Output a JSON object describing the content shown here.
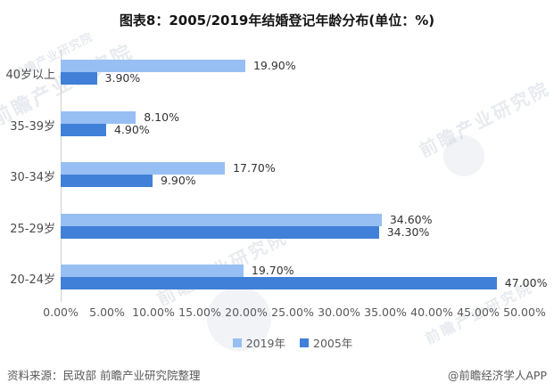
{
  "header": {
    "title": "图表8：2005/2019年结婚登记年龄分布(单位：%)"
  },
  "chart_data": {
    "type": "bar",
    "orientation": "horizontal",
    "title": "图表8：2005/2019年结婚登记年龄分布(单位：%)",
    "unit": "%",
    "categories": [
      "40岁以上",
      "35-39岁",
      "30-34岁",
      "25-29岁",
      "20-24岁"
    ],
    "series": [
      {
        "name": "2019年",
        "color": "#97BFF3",
        "values": [
          19.9,
          8.1,
          17.7,
          34.6,
          19.7
        ],
        "labels": [
          "19.90%",
          "8.10%",
          "17.70%",
          "34.60%",
          "19.70%"
        ]
      },
      {
        "name": "2005年",
        "color": "#4080D8",
        "values": [
          3.9,
          4.9,
          9.9,
          34.3,
          47.0
        ],
        "labels": [
          "3.90%",
          "4.90%",
          "9.90%",
          "34.30%",
          "47.00%"
        ]
      }
    ],
    "xlim": [
      0,
      50
    ],
    "xticks": [
      "0.00%",
      "5.00%",
      "10.00%",
      "15.00%",
      "20.00%",
      "25.00%",
      "30.00%",
      "35.00%",
      "40.00%",
      "45.00%",
      "50.00%"
    ],
    "grid": false,
    "legend_position": "bottom-center"
  },
  "footer": {
    "source": "资料来源：民政部 前瞻产业研究院整理",
    "credit": "@前瞻经济学人APP"
  },
  "watermark": {
    "text": "前瞻产业研究院"
  },
  "colors": {
    "bar_2019": "#97BFF3",
    "bar_2005": "#4080D8",
    "text_gray": "#595959",
    "value_text": "#333333",
    "axis_line": "#cfcfcf"
  }
}
